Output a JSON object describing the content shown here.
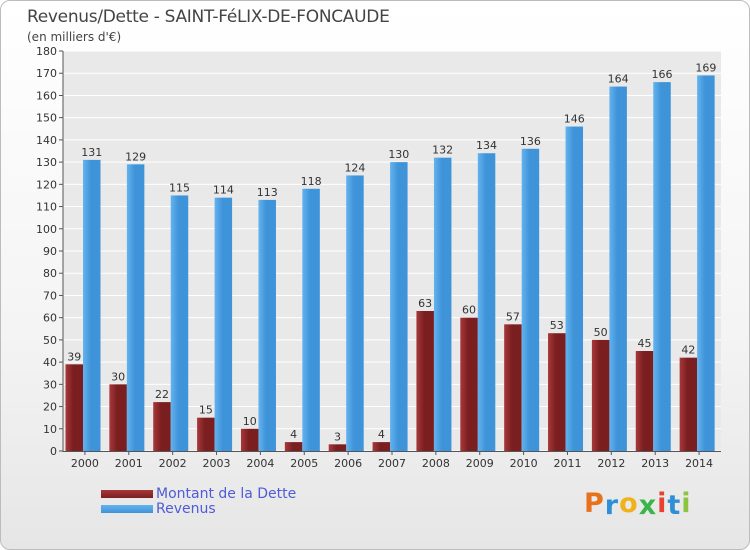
{
  "title": "Revenus/Dette - SAINT-FéLIX-DE-FONCAUDE",
  "subtitle": "(en milliers d'€)",
  "colors": {
    "dette": "#7a1e20",
    "dette_light": "#a8383a",
    "revenus": "#3f93d8",
    "revenus_light": "#63b3ee",
    "grid": "#ffffff",
    "plot_bg": "#e9e9e9"
  },
  "chart_data": {
    "type": "bar",
    "categories": [
      "2000",
      "2001",
      "2002",
      "2003",
      "2004",
      "2005",
      "2006",
      "2007",
      "2008",
      "2009",
      "2010",
      "2011",
      "2012",
      "2013",
      "2014"
    ],
    "series": [
      {
        "name": "Montant de la Dette",
        "values": [
          39,
          30,
          22,
          15,
          10,
          4,
          3,
          4,
          63,
          60,
          57,
          53,
          50,
          45,
          42
        ]
      },
      {
        "name": "Revenus",
        "values": [
          131,
          129,
          115,
          114,
          113,
          118,
          124,
          130,
          132,
          134,
          136,
          146,
          164,
          166,
          169
        ]
      }
    ],
    "ylim": [
      0,
      180
    ],
    "yticks": [
      0,
      10,
      20,
      30,
      40,
      50,
      60,
      70,
      80,
      90,
      100,
      110,
      120,
      130,
      140,
      150,
      160,
      170,
      180
    ],
    "grid": true,
    "legend_position": "bottom-left"
  },
  "logo": {
    "text": "Proxiti",
    "colors": [
      "#e8711c",
      "#2f8fd6",
      "#f0b21b",
      "#39b54a",
      "#e8412f",
      "#2f8fd6",
      "#8bc53f"
    ]
  }
}
